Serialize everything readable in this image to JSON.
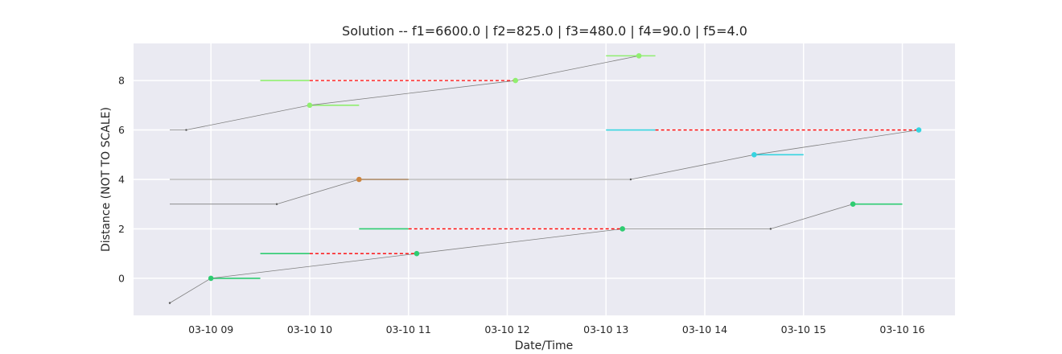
{
  "chart_data": {
    "type": "line",
    "title": "Solution -- f1=6600.0 | f2=825.0 | f3=480.0 | f4=90.0 | f5=4.0",
    "xlabel": "Date/Time",
    "ylabel": "Distance (NOT TO SCALE)",
    "xlim": [
      "03-10 08:13",
      "03-10 16:32"
    ],
    "ylim": [
      -1.5,
      9.5
    ],
    "x_ticks": [
      {
        "t": "03-10 09:00",
        "label": "03-10 09"
      },
      {
        "t": "03-10 10:00",
        "label": "03-10 10"
      },
      {
        "t": "03-10 11:00",
        "label": "03-10 11"
      },
      {
        "t": "03-10 12:00",
        "label": "03-10 12"
      },
      {
        "t": "03-10 13:00",
        "label": "03-10 13"
      },
      {
        "t": "03-10 14:00",
        "label": "03-10 14"
      },
      {
        "t": "03-10 15:00",
        "label": "03-10 15"
      },
      {
        "t": "03-10 16:00",
        "label": "03-10 16"
      }
    ],
    "y_ticks": [
      0,
      2,
      4,
      6,
      8
    ],
    "grid": true,
    "colors": {
      "background": "#eaeaf2",
      "grid": "#ffffff",
      "route": "#7f7f7f",
      "wait": "#ff0000",
      "green": "#2ecc71",
      "lime": "#90ee70",
      "orange": "#cd853f",
      "cyan": "#36d4e0"
    },
    "routes": [
      {
        "name": "",
        "color": "#7f7f7f",
        "points": [
          {
            "t": "03-10 08:35",
            "y": -1
          },
          {
            "t": "03-10 09:00",
            "y": 0
          },
          {
            "t": "03-10 11:05",
            "y": 1
          },
          {
            "t": "03-10 13:10",
            "y": 2
          },
          {
            "t": "03-10 14:40",
            "y": 2
          },
          {
            "t": "03-10 15:30",
            "y": 3
          }
        ]
      },
      {
        "name": "",
        "color": "#7f7f7f",
        "points": [
          {
            "t": "03-10 08:35",
            "y": 3
          },
          {
            "t": "03-10 09:40",
            "y": 3
          },
          {
            "t": "03-10 10:30",
            "y": 4
          }
        ]
      },
      {
        "name": "",
        "color": "#7f7f7f",
        "points": [
          {
            "t": "03-10 08:35",
            "y": 4
          },
          {
            "t": "03-10 13:15",
            "y": 4
          },
          {
            "t": "03-10 14:30",
            "y": 5
          },
          {
            "t": "03-10 16:10",
            "y": 6
          }
        ]
      },
      {
        "name": "",
        "color": "#7f7f7f",
        "points": [
          {
            "t": "03-10 08:35",
            "y": 6
          },
          {
            "t": "03-10 08:45",
            "y": 6
          },
          {
            "t": "03-10 10:00",
            "y": 7
          },
          {
            "t": "03-10 12:05",
            "y": 8
          },
          {
            "t": "03-10 13:20",
            "y": 9
          }
        ]
      }
    ],
    "time_windows": [
      {
        "y": 0,
        "start": "03-10 09:00",
        "end": "03-10 09:30",
        "color": "#2ecc71"
      },
      {
        "y": 1,
        "start": "03-10 09:30",
        "end": "03-10 10:00",
        "color": "#2ecc71"
      },
      {
        "y": 2,
        "start": "03-10 10:30",
        "end": "03-10 11:00",
        "color": "#2ecc71"
      },
      {
        "y": 3,
        "start": "03-10 15:30",
        "end": "03-10 16:00",
        "color": "#2ecc71"
      },
      {
        "y": 4,
        "start": "03-10 10:30",
        "end": "03-10 11:00",
        "color": "#cd853f"
      },
      {
        "y": 5,
        "start": "03-10 14:30",
        "end": "03-10 15:00",
        "color": "#36d4e0"
      },
      {
        "y": 6,
        "start": "03-10 13:00",
        "end": "03-10 13:30",
        "color": "#36d4e0"
      },
      {
        "y": 7,
        "start": "03-10 10:00",
        "end": "03-10 10:30",
        "color": "#90ee70"
      },
      {
        "y": 8,
        "start": "03-10 09:30",
        "end": "03-10 10:00",
        "color": "#90ee70"
      },
      {
        "y": 9,
        "start": "03-10 13:00",
        "end": "03-10 13:30",
        "color": "#90ee70"
      }
    ],
    "late_segments": [
      {
        "y": 1,
        "start": "03-10 10:00",
        "end": "03-10 11:05"
      },
      {
        "y": 2,
        "start": "03-10 11:00",
        "end": "03-10 13:10"
      },
      {
        "y": 6,
        "start": "03-10 13:30",
        "end": "03-10 16:10"
      },
      {
        "y": 8,
        "start": "03-10 10:00",
        "end": "03-10 12:05"
      }
    ],
    "visits": [
      {
        "t": "03-10 09:00",
        "y": 0,
        "color": "#2ecc71"
      },
      {
        "t": "03-10 11:05",
        "y": 1,
        "color": "#2ecc71"
      },
      {
        "t": "03-10 13:10",
        "y": 2,
        "color": "#2ecc71"
      },
      {
        "t": "03-10 15:30",
        "y": 3,
        "color": "#2ecc71"
      },
      {
        "t": "03-10 10:30",
        "y": 4,
        "color": "#cd853f"
      },
      {
        "t": "03-10 14:30",
        "y": 5,
        "color": "#36d4e0"
      },
      {
        "t": "03-10 16:10",
        "y": 6,
        "color": "#36d4e0"
      },
      {
        "t": "03-10 10:00",
        "y": 7,
        "color": "#90ee70"
      },
      {
        "t": "03-10 12:05",
        "y": 8,
        "color": "#90ee70"
      },
      {
        "t": "03-10 13:20",
        "y": 9,
        "color": "#90ee70"
      }
    ],
    "waypoints": [
      {
        "t": "03-10 08:35",
        "y": -1
      },
      {
        "t": "03-10 08:45",
        "y": 6
      },
      {
        "t": "03-10 09:40",
        "y": 3
      },
      {
        "t": "03-10 13:15",
        "y": 4
      },
      {
        "t": "03-10 14:40",
        "y": 2
      }
    ]
  }
}
